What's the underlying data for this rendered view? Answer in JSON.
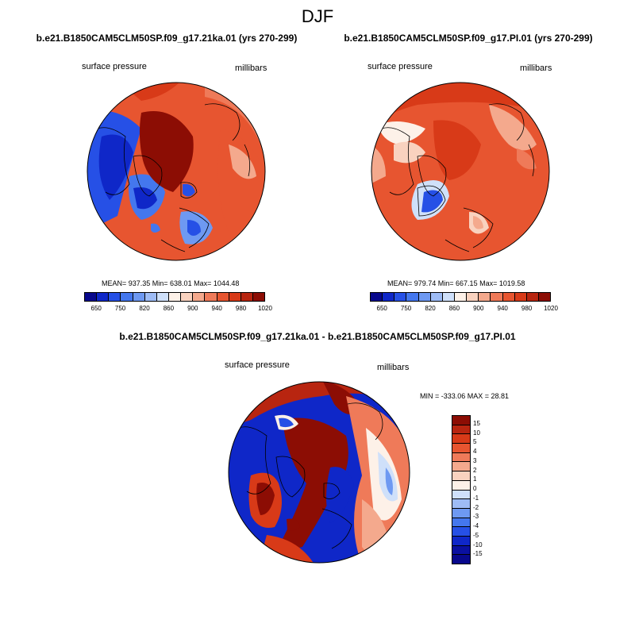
{
  "figure": {
    "season": "DJF",
    "diff_title": "b.e21.B1850CAM5CLM50SP.f09_g17.21ka.01 - b.e21.B1850CAM5CLM50SP.f09_g17.PI.01"
  },
  "panel_left": {
    "title": "b.e21.B1850CAM5CLM50SP.f09_g17.21ka.01 (yrs 270-299)",
    "variable": "surface pressure",
    "units": "millibars",
    "stats": "MEAN= 937.35  Min= 638.01  Max= 1044.48"
  },
  "panel_right": {
    "title": "b.e21.B1850CAM5CLM50SP.f09_g17.PI.01 (yrs 270-299)",
    "variable": "surface pressure",
    "units": "millibars",
    "stats": "MEAN= 979.74  Min= 667.15  Max= 1019.58"
  },
  "panel_diff": {
    "variable": "surface pressure",
    "units": "millibars",
    "stats": "MIN = -333.06 MAX =  28.81"
  },
  "colorbar_abs": {
    "colors": [
      "#08088c",
      "#0f27c8",
      "#2650e6",
      "#4477ee",
      "#6e99f2",
      "#9ebcf6",
      "#cfe0fa",
      "#fdf1e8",
      "#f9d2bf",
      "#f4a98d",
      "#ef7a59",
      "#e75530",
      "#d83a18",
      "#b82510",
      "#8c0d04"
    ],
    "labels": [
      "650",
      "750",
      "820",
      "860",
      "900",
      "940",
      "980",
      "1020"
    ]
  },
  "colorbar_diff": {
    "colors": [
      "#8c0d04",
      "#b82510",
      "#d83a18",
      "#e75530",
      "#ef7a59",
      "#f4a98d",
      "#f9d2bf",
      "#fdf1e8",
      "#cfe0fa",
      "#9ebcf6",
      "#6e99f2",
      "#4477ee",
      "#2650e6",
      "#0f27c8",
      "#0a10a0",
      "#08088c"
    ],
    "labels": [
      "15",
      "10",
      "5",
      "4",
      "3",
      "2",
      "1",
      "0",
      "-1",
      "-2",
      "-3",
      "-4",
      "-5",
      "-10",
      "-15"
    ]
  }
}
